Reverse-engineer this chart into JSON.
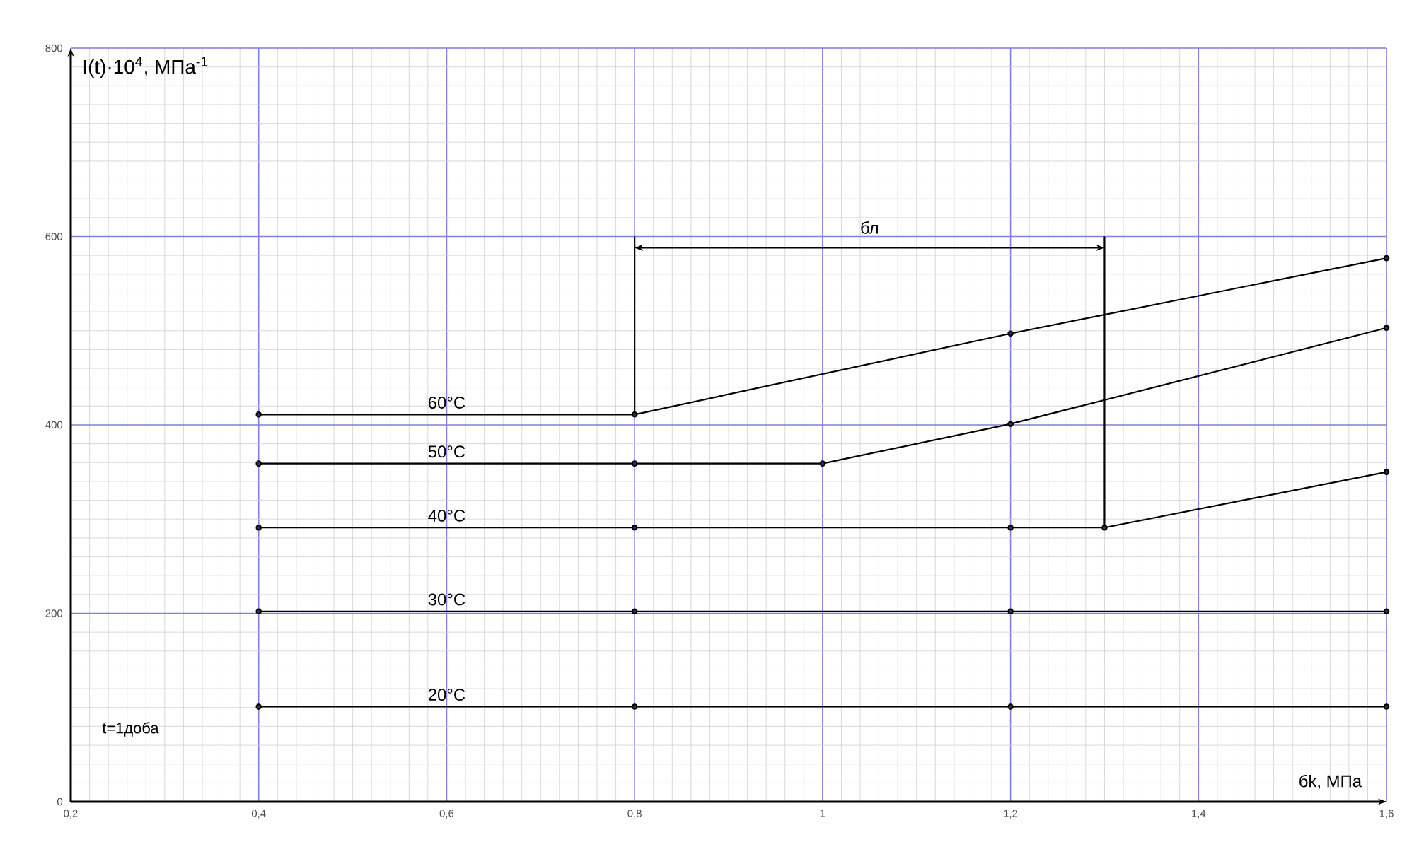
{
  "chart_data": {
    "type": "line",
    "xlabel": "бk, МПа",
    "ylabel": "I(t)·10$^{4}$, МПа$^{-1}$",
    "annotations": [
      "бл",
      "t=1доба"
    ],
    "series": [
      {
        "name": "60°C",
        "color": "#000000",
        "x": [
          0.4,
          0.8,
          1.2,
          1.6
        ],
        "values": [
          411,
          411,
          497,
          577
        ]
      },
      {
        "name": "50°C",
        "color": "#000000",
        "x": [
          0.4,
          0.8,
          1.0,
          1.2,
          1.6
        ],
        "values": [
          359,
          359,
          359,
          401,
          503
        ]
      },
      {
        "name": "40°C",
        "color": "#000000",
        "x": [
          0.4,
          0.8,
          1.2,
          1.3,
          1.6
        ],
        "values": [
          291,
          291,
          291,
          291,
          350
        ]
      },
      {
        "name": "30°C",
        "color": "#000000",
        "x": [
          0.4,
          0.8,
          1.2,
          1.6
        ],
        "values": [
          202,
          202,
          202,
          202
        ]
      },
      {
        "name": "20°C",
        "color": "#000000",
        "x": [
          0.4,
          0.8,
          1.2,
          1.6
        ],
        "values": [
          101,
          101,
          101,
          101
        ]
      },
      {
        "color": "#000000",
        "marker": "none",
        "x": [
          0.8,
          0.8
        ],
        "values": [
          411,
          600
        ]
      },
      {
        "color": "#000000",
        "marker": "none",
        "x": [
          1.3,
          1.3
        ],
        "values": [
          291,
          600
        ]
      }
    ],
    "xlim": [
      0.2,
      1.6
    ],
    "xticks": [
      {
        "value": 0.2,
        "label": "0,2"
      },
      {
        "value": 0.4,
        "label": "0,4"
      },
      {
        "value": 0.6,
        "label": "0,6"
      },
      {
        "value": 0.8,
        "label": "0,8"
      },
      1,
      {
        "value": 1.2,
        "label": "1,2"
      },
      {
        "value": 1.4,
        "label": "1,4"
      },
      {
        "value": 1.6,
        "label": "1,6"
      }
    ],
    "ylim": [
      0,
      800
    ],
    "yticks": [
      0,
      200,
      400,
      600,
      800
    ],
    "grid": true,
    "marker": "circle",
    "line_style": "solid"
  }
}
